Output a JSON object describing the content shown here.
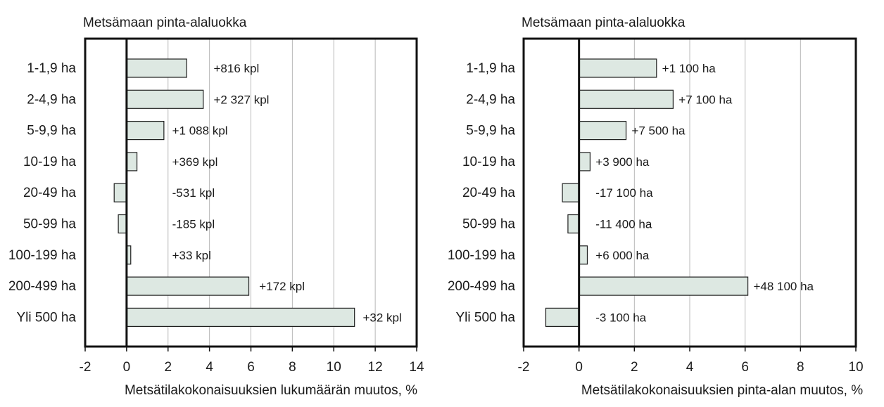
{
  "chart_data": [
    {
      "type": "bar",
      "orientation": "horizontal",
      "title": "Metsämaan pinta-alaluokka",
      "xlabel": "Metsätilakokonaisuuksien lukumäärän muutos, %",
      "ylabel": "",
      "xlim": [
        -2,
        14
      ],
      "xticks": [
        -2,
        0,
        2,
        4,
        6,
        8,
        10,
        12,
        14
      ],
      "grid": true,
      "categories": [
        "1-1,9 ha",
        "2-4,9 ha",
        "5-9,9 ha",
        "10-19 ha",
        "20-49 ha",
        "50-99 ha",
        "100-199 ha",
        "200-499 ha",
        "Yli 500 ha"
      ],
      "values": [
        2.9,
        3.7,
        1.8,
        0.5,
        -0.6,
        -0.4,
        0.2,
        5.9,
        11.0
      ],
      "data_labels": [
        "+816 kpl",
        "+2 327 kpl",
        "+1 088 kpl",
        "+369 kpl",
        "-531 kpl",
        "-185 kpl",
        "+33 kpl",
        "+172 kpl",
        "+32 kpl"
      ],
      "label_at": [
        4.2,
        4.2,
        2.2,
        2.2,
        2.2,
        2.2,
        2.2,
        6.4,
        11.4
      ]
    },
    {
      "type": "bar",
      "orientation": "horizontal",
      "title": "Metsämaan pinta-alaluokka",
      "xlabel": "Metsätilakokonaisuuksien pinta-alan muutos, %",
      "ylabel": "",
      "xlim": [
        -2,
        10
      ],
      "xticks": [
        -2,
        0,
        2,
        4,
        6,
        8,
        10
      ],
      "grid": true,
      "categories": [
        "1-1,9 ha",
        "2-4,9 ha",
        "5-9,9 ha",
        "10-19 ha",
        "20-49 ha",
        "50-99 ha",
        "100-199 ha",
        "200-499 ha",
        "Yli 500 ha"
      ],
      "values": [
        2.8,
        3.4,
        1.7,
        0.4,
        -0.6,
        -0.4,
        0.3,
        6.1,
        -1.2
      ],
      "data_labels": [
        "+1 100 ha",
        "+7 100 ha",
        "+7 500 ha",
        "+3 900 ha",
        "-17 100 ha",
        "-11 400 ha",
        "+6 000 ha",
        "+48 100 ha",
        "-3 100 ha"
      ],
      "label_at": [
        3.0,
        3.6,
        1.9,
        0.6,
        0.6,
        0.6,
        0.6,
        6.3,
        0.6
      ]
    }
  ]
}
